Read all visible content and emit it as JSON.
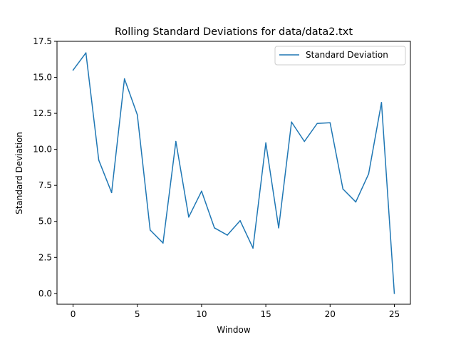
{
  "chart_data": {
    "type": "line",
    "title": "Rolling Standard Deviations for data/data2.txt",
    "xlabel": "Window",
    "ylabel": "Standard Deviation",
    "xlim": [
      -1.25,
      26.25
    ],
    "ylim": [
      -0.75,
      17.5
    ],
    "xticks": [
      0,
      5,
      10,
      15,
      20,
      25
    ],
    "xtick_labels": [
      "0",
      "5",
      "10",
      "15",
      "20",
      "25"
    ],
    "yticks": [
      0,
      2.5,
      5,
      7.5,
      10,
      12.5,
      15,
      17.5
    ],
    "ytick_labels": [
      "0.0",
      "2.5",
      "5.0",
      "7.5",
      "10.0",
      "12.5",
      "15.0",
      "17.5"
    ],
    "grid": false,
    "legend_position": "top-right",
    "series": [
      {
        "name": "Standard Deviation",
        "color": "#1f77b4",
        "x": [
          0,
          1,
          2,
          3,
          4,
          5,
          6,
          7,
          8,
          9,
          10,
          11,
          12,
          13,
          14,
          15,
          16,
          17,
          18,
          19,
          20,
          21,
          22,
          23,
          24,
          25
        ],
        "values": [
          15.5,
          16.7,
          9.25,
          7.0,
          14.9,
          12.4,
          4.4,
          3.5,
          10.55,
          5.3,
          7.1,
          4.55,
          4.05,
          5.05,
          3.15,
          10.45,
          4.55,
          11.9,
          10.55,
          11.8,
          11.85,
          7.25,
          6.35,
          8.3,
          13.25,
          0.0
        ]
      }
    ]
  }
}
